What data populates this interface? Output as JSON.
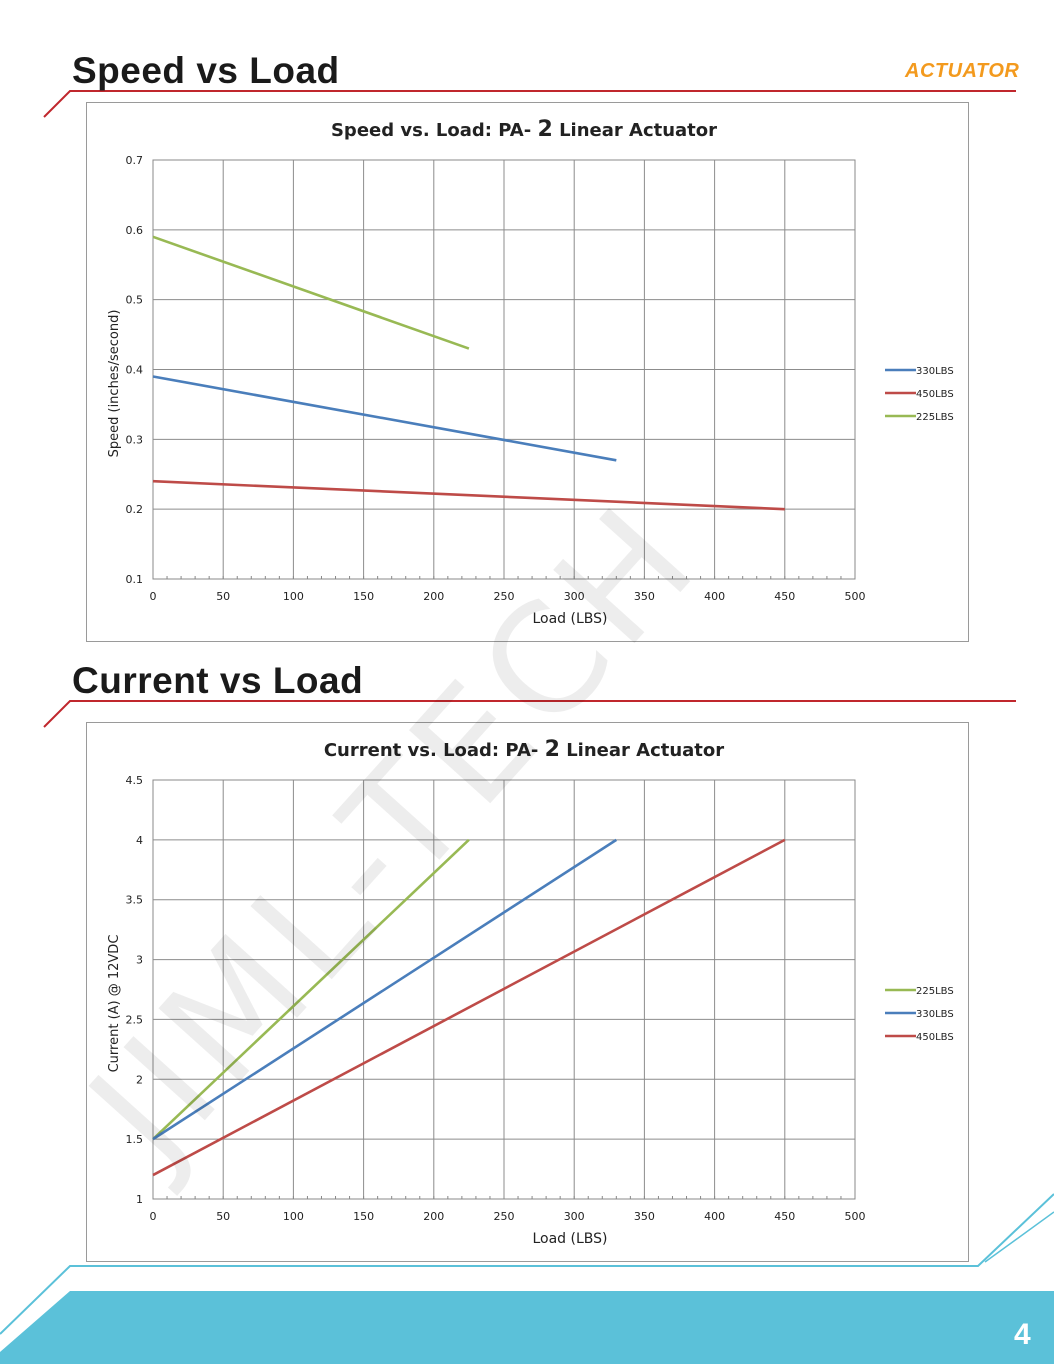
{
  "page": {
    "brand_logo": "ACTUATOR",
    "watermark": "JIML-TECH",
    "page_number": "4",
    "accent_color": "#c0272d",
    "footer_color": "#5bc1d9"
  },
  "sections": [
    {
      "title": "Speed vs Load"
    },
    {
      "title": "Current vs Load"
    }
  ],
  "chart_data": [
    {
      "type": "line",
      "title_text": "Speed vs. Load: PA- ",
      "title_num": "2",
      "title_tail": " Linear Actuator",
      "xlabel": "Load (LBS)",
      "ylabel": "Speed (inches/second)",
      "xlim": [
        0,
        500
      ],
      "ylim": [
        0.1,
        0.7
      ],
      "xticks": [
        0,
        50,
        100,
        150,
        200,
        250,
        300,
        350,
        400,
        450,
        500
      ],
      "yticks": [
        0.1,
        0.2,
        0.3,
        0.4,
        0.5,
        0.6,
        0.7
      ],
      "ytick_labels": [
        "0.1",
        "0.2",
        "0.3",
        "0.4",
        "0.5",
        "0.6",
        "0.7"
      ],
      "grid": true,
      "legend_position": "right",
      "series": [
        {
          "name": "330LBS",
          "color": "#4a7ebb",
          "points": [
            [
              0,
              0.39
            ],
            [
              330,
              0.27
            ]
          ]
        },
        {
          "name": "450LBS",
          "color": "#be4b48",
          "points": [
            [
              0,
              0.24
            ],
            [
              450,
              0.2
            ]
          ]
        },
        {
          "name": "225LBS",
          "color": "#98b954",
          "points": [
            [
              0,
              0.59
            ],
            [
              225,
              0.43
            ]
          ]
        }
      ]
    },
    {
      "type": "line",
      "title_text": "Current vs. Load: PA- ",
      "title_num": "2",
      "title_tail": " Linear Actuator",
      "xlabel": "Load (LBS)",
      "ylabel": "Current (A) @ 12VDC",
      "xlim": [
        0,
        500
      ],
      "ylim": [
        1,
        4.5
      ],
      "xticks": [
        0,
        50,
        100,
        150,
        200,
        250,
        300,
        350,
        400,
        450,
        500
      ],
      "yticks": [
        1,
        1.5,
        2,
        2.5,
        3,
        3.5,
        4,
        4.5
      ],
      "ytick_labels": [
        "1",
        "1.5",
        "2",
        "2.5",
        "3",
        "3.5",
        "4",
        "4.5"
      ],
      "grid": true,
      "legend_position": "right",
      "series": [
        {
          "name": "225LBS",
          "color": "#98b954",
          "points": [
            [
              0,
              1.5
            ],
            [
              225,
              4.0
            ]
          ]
        },
        {
          "name": "330LBS",
          "color": "#4a7ebb",
          "points": [
            [
              0,
              1.5
            ],
            [
              330,
              4.0
            ]
          ]
        },
        {
          "name": "450LBS",
          "color": "#be4b48",
          "points": [
            [
              0,
              1.2
            ],
            [
              450,
              4.0
            ]
          ]
        }
      ]
    }
  ]
}
